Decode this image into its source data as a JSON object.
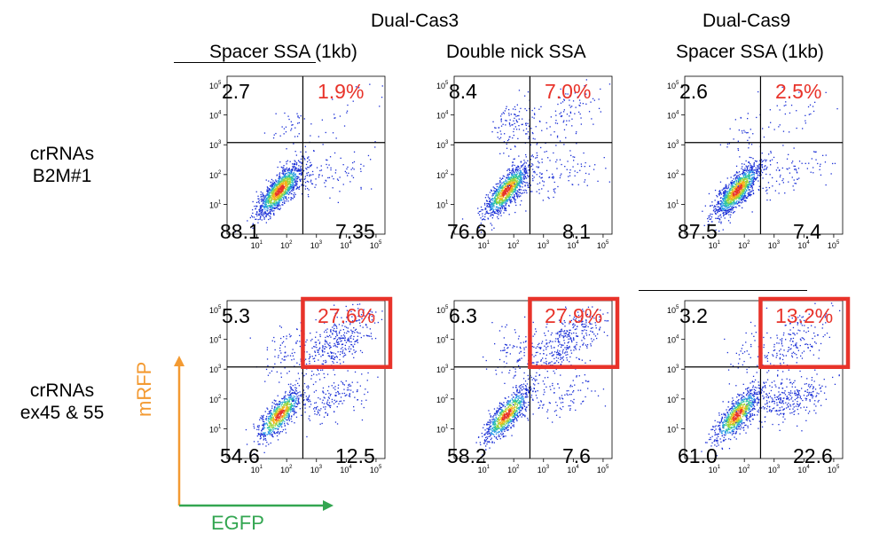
{
  "header": {
    "group1": "Dual-Cas3",
    "group2": "Dual-Cas9",
    "col1": "Spacer SSA (1kb)",
    "col2": "Double nick SSA",
    "col3": "Spacer SSA (1kb)"
  },
  "rows": [
    {
      "line1": "crRNAs",
      "line2": "B2M#1"
    },
    {
      "line1": "crRNAs",
      "line2": "ex45 & 55"
    }
  ],
  "axes": {
    "x_label": "EGFP",
    "y_label": "mRFP",
    "x_color": "#33a651",
    "y_color": "#f39a32",
    "tick_base": "10",
    "tick_exponents": [
      "1",
      "2",
      "3",
      "4",
      "5"
    ]
  },
  "colors": {
    "highlight_box": "#e8332a",
    "highlight_text": "#e8332a",
    "density_low": "#1a2fd6",
    "density_high": "#e8332a"
  },
  "chart_data": [
    {
      "type": "scatter",
      "row": "crRNAs B2M#1",
      "column": "Spacer SSA (1kb)",
      "x_scale": "log",
      "y_scale": "log",
      "xlim": [
        1,
        100000
      ],
      "ylim": [
        1,
        100000
      ],
      "quadrants": {
        "upper_left": "2.7",
        "upper_right": "1.9%",
        "lower_left": "88.1",
        "lower_right": "7.35"
      },
      "highlight": false
    },
    {
      "type": "scatter",
      "row": "crRNAs B2M#1",
      "column": "Double nick SSA",
      "x_scale": "log",
      "y_scale": "log",
      "xlim": [
        1,
        100000
      ],
      "ylim": [
        1,
        100000
      ],
      "quadrants": {
        "upper_left": "8.4",
        "upper_right": "7.0%",
        "lower_left": "76.6",
        "lower_right": "8.1"
      },
      "highlight": false
    },
    {
      "type": "scatter",
      "row": "crRNAs B2M#1",
      "column": "Spacer SSA (1kb)",
      "x_scale": "log",
      "y_scale": "log",
      "xlim": [
        1,
        100000
      ],
      "ylim": [
        1,
        100000
      ],
      "quadrants": {
        "upper_left": "2.6",
        "upper_right": "2.5%",
        "lower_left": "87.5",
        "lower_right": "7.4"
      },
      "highlight": false
    },
    {
      "type": "scatter",
      "row": "crRNAs ex45 & 55",
      "column": "Spacer SSA (1kb)",
      "x_scale": "log",
      "y_scale": "log",
      "xlim": [
        1,
        100000
      ],
      "ylim": [
        1,
        100000
      ],
      "quadrants": {
        "upper_left": "5.3",
        "upper_right": "27.6%",
        "lower_left": "54.6",
        "lower_right": "12.5"
      },
      "highlight": true
    },
    {
      "type": "scatter",
      "row": "crRNAs ex45 & 55",
      "column": "Double nick SSA",
      "x_scale": "log",
      "y_scale": "log",
      "xlim": [
        1,
        100000
      ],
      "ylim": [
        1,
        100000
      ],
      "quadrants": {
        "upper_left": "6.3",
        "upper_right": "27.9%",
        "lower_left": "58.2",
        "lower_right": "7.6"
      },
      "highlight": true
    },
    {
      "type": "scatter",
      "row": "crRNAs ex45 & 55",
      "column": "Spacer SSA (1kb)",
      "x_scale": "log",
      "y_scale": "log",
      "xlim": [
        1,
        100000
      ],
      "ylim": [
        1,
        100000
      ],
      "quadrants": {
        "upper_left": "3.2",
        "upper_right": "13.2%",
        "lower_left": "61.0",
        "lower_right": "22.6"
      },
      "highlight": true
    }
  ]
}
